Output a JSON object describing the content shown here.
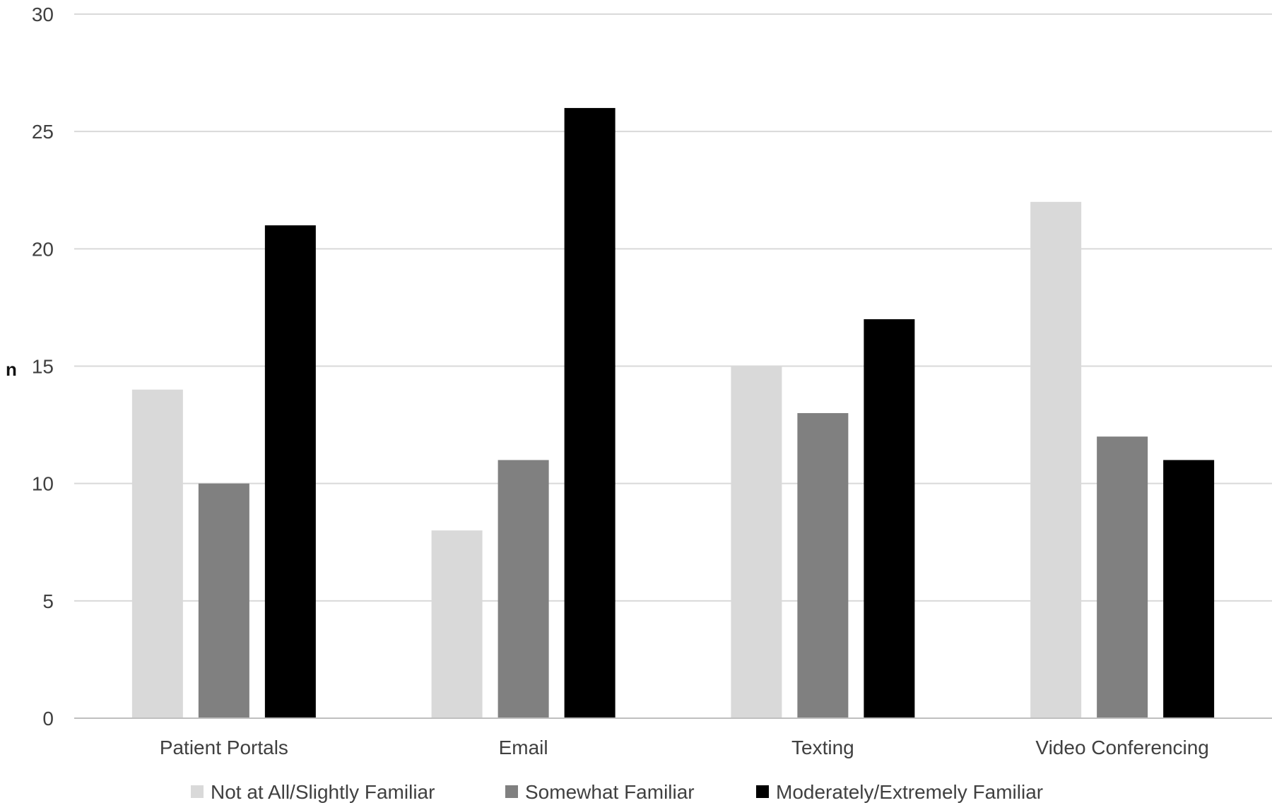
{
  "chart_data": {
    "type": "bar",
    "title": "",
    "xlabel": "",
    "ylabel": "n",
    "ylim": [
      0,
      30
    ],
    "yticks": [
      0,
      5,
      10,
      15,
      20,
      25,
      30
    ],
    "grid": true,
    "legend_position": "bottom",
    "categories": [
      "Patient Portals",
      "Email",
      "Texting",
      "Video Conferencing"
    ],
    "series": [
      {
        "name": "Not at All/Slightly Familiar",
        "color": "#d9d9d9",
        "values": [
          14,
          8,
          15,
          22
        ]
      },
      {
        "name": "Somewhat Familiar",
        "color": "#808080",
        "values": [
          10,
          11,
          13,
          12
        ]
      },
      {
        "name": "Moderately/Extremely Familiar",
        "color": "#000000",
        "values": [
          21,
          26,
          17,
          11
        ]
      }
    ]
  }
}
